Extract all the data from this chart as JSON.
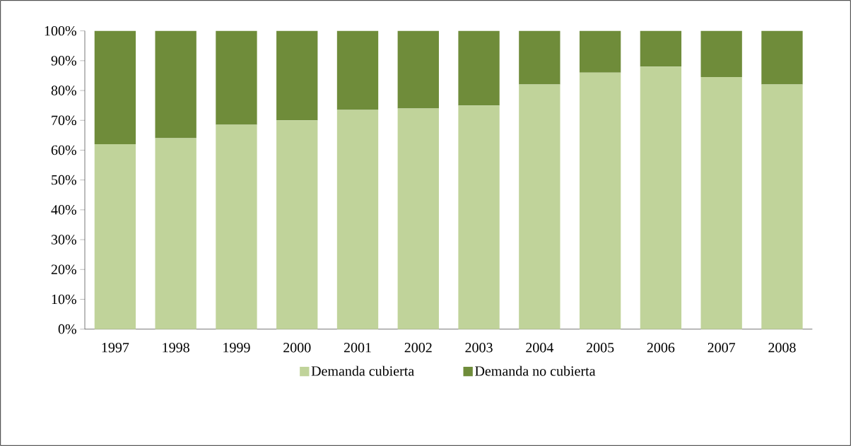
{
  "chart_data": {
    "type": "bar",
    "stacked": true,
    "categories": [
      "1997",
      "1998",
      "1999",
      "2000",
      "2001",
      "2002",
      "2003",
      "2004",
      "2005",
      "2006",
      "2007",
      "2008"
    ],
    "series": [
      {
        "name": "Demanda cubierta",
        "color": "#c0d39a",
        "values": [
          62,
          64,
          68.5,
          70,
          73.5,
          74,
          75,
          82,
          86,
          88,
          84.5,
          82
        ]
      },
      {
        "name": "Demanda no cubierta",
        "color": "#6f8c3a",
        "values": [
          38,
          36,
          31.5,
          30,
          26.5,
          26,
          25,
          18,
          14,
          12,
          15.5,
          18
        ]
      }
    ],
    "ylim": [
      0,
      100
    ],
    "yticks": [
      {
        "value": 0,
        "label": "0%"
      },
      {
        "value": 10,
        "label": "10%"
      },
      {
        "value": 20,
        "label": "20%"
      },
      {
        "value": 30,
        "label": "30%"
      },
      {
        "value": 40,
        "label": "40%"
      },
      {
        "value": 50,
        "label": "50%"
      },
      {
        "value": 60,
        "label": "60%"
      },
      {
        "value": 70,
        "label": "70%"
      },
      {
        "value": 80,
        "label": "80%"
      },
      {
        "value": 90,
        "label": "90%"
      },
      {
        "value": 100,
        "label": "100%"
      }
    ],
    "grid": false,
    "legend": "bottom"
  }
}
